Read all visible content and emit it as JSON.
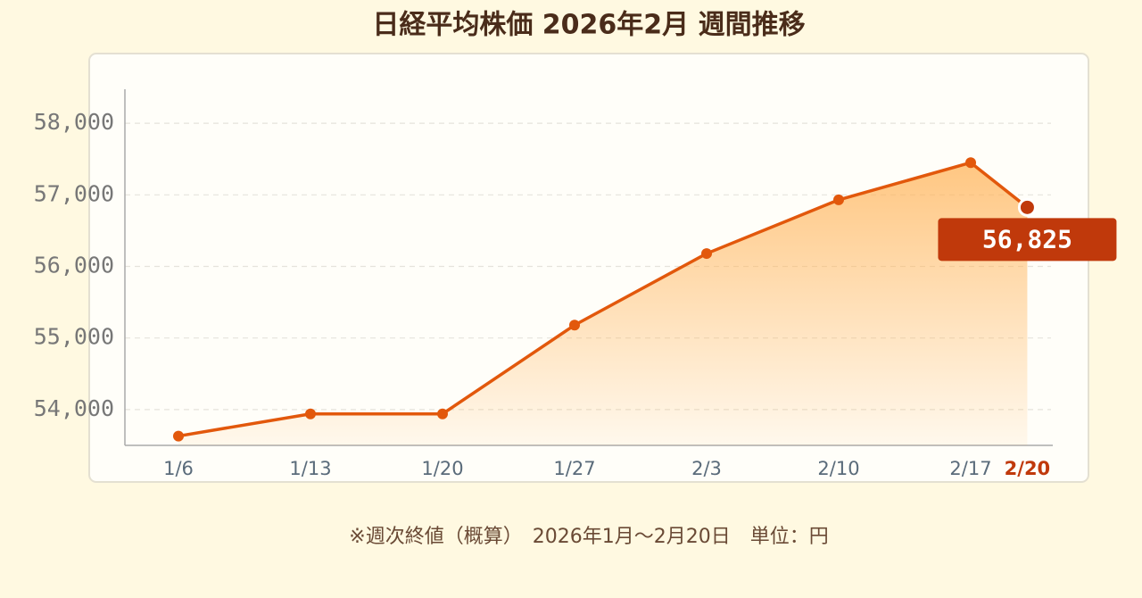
{
  "chart_data": {
    "type": "area-line",
    "title": "日経平均株価 2026年2月 週間推移",
    "categories": [
      "1/6",
      "1/13",
      "1/20",
      "1/27",
      "2/3",
      "2/10",
      "2/17",
      "2/20"
    ],
    "values": [
      53630,
      53940,
      53940,
      55180,
      56180,
      56930,
      57450,
      56825
    ],
    "value_labels": [
      null,
      null,
      null,
      null,
      null,
      null,
      null,
      "56,825"
    ],
    "color": "#e2580c",
    "highlight_color": "#c0390b",
    "ylim": [
      53500,
      58500
    ],
    "yticks": [
      {
        "value": 54000,
        "label": "54,000"
      },
      {
        "value": 55000,
        "label": "55,000"
      },
      {
        "value": 56000,
        "label": "56,000"
      },
      {
        "value": 57000,
        "label": "57,000"
      },
      {
        "value": 58000,
        "label": "58,000"
      }
    ],
    "grid": true,
    "note": "※週次終値（概算）　2026年1月〜2月20日　単位：円"
  }
}
